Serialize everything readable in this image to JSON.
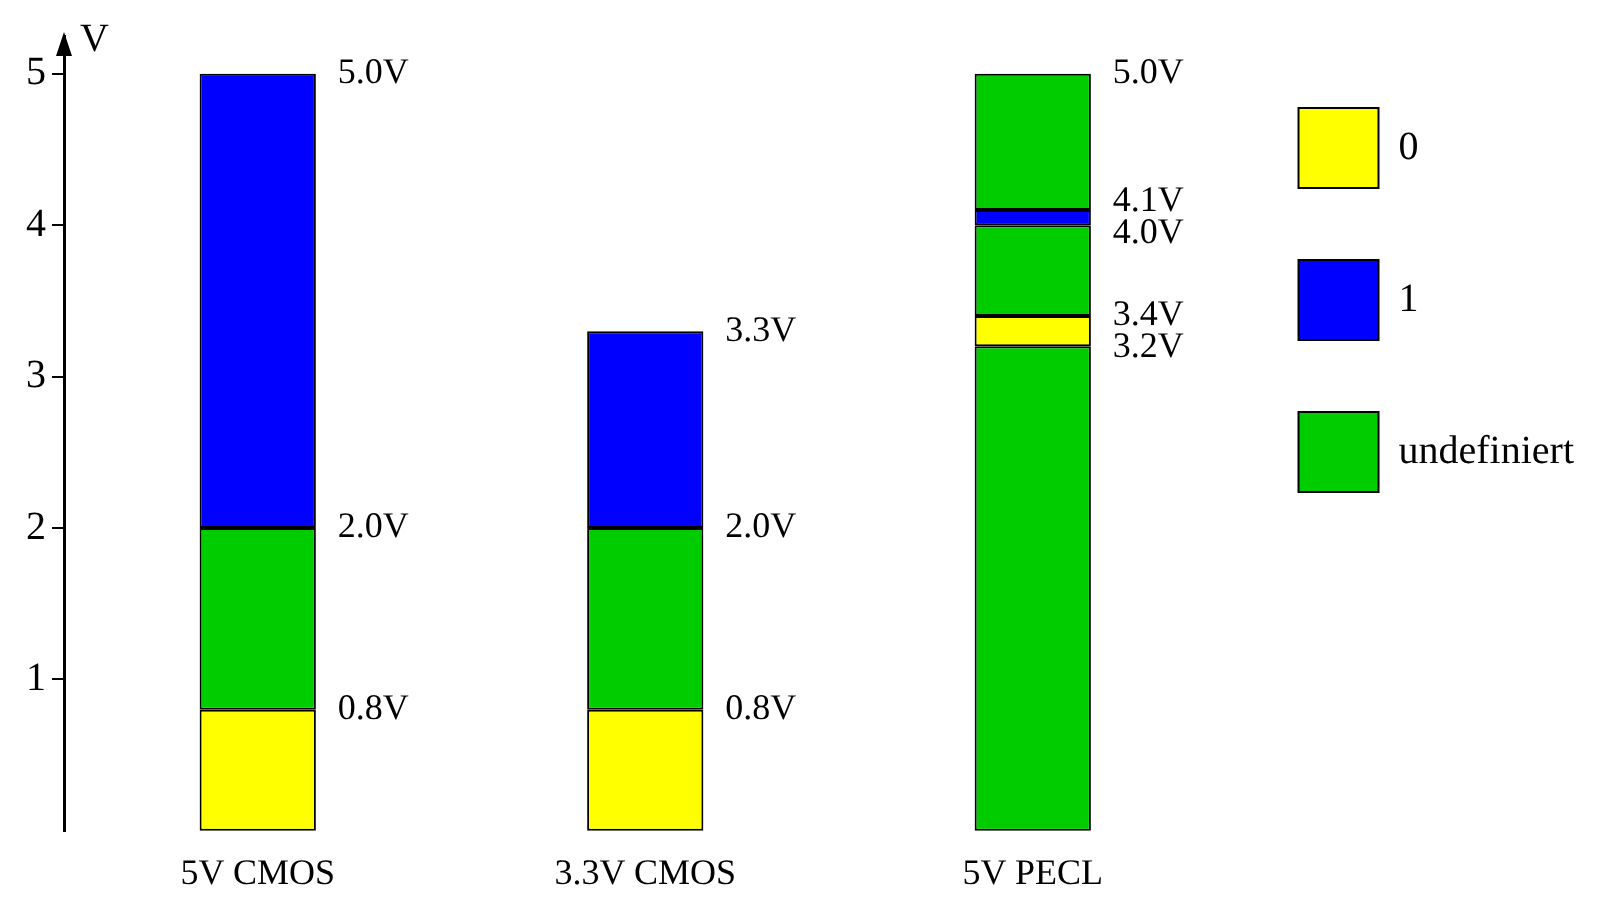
{
  "chart_data": {
    "type": "bar",
    "ylabel": "V",
    "categories": [
      "5V CMOS",
      "3.3V CMOS",
      "5V PECL"
    ],
    "series": [
      {
        "name": "0",
        "color": "#ffff00",
        "values": [
          0.8,
          0.8,
          0.2
        ],
        "base": [
          0,
          0,
          3.2
        ]
      },
      {
        "name": "1",
        "color": "#0000ff",
        "values": [
          3.0,
          1.3,
          0.1
        ],
        "base": [
          2.0,
          2.0,
          4.0
        ]
      },
      {
        "name": "undefiniert",
        "color": "#00cc00",
        "values": [
          1.2,
          1.2,
          3.2
        ],
        "base": [
          0.8,
          0.8,
          0
        ]
      },
      {
        "color": "#00cc00",
        "values": [
          null,
          null,
          0.6
        ],
        "base": [
          null,
          null,
          3.4
        ]
      },
      {
        "color": "#00cc00",
        "values": [
          null,
          null,
          0.9
        ],
        "base": [
          null,
          null,
          4.1
        ]
      }
    ],
    "ylim": [
      0,
      5.25
    ],
    "yticks": [
      1,
      2,
      3,
      4,
      5
    ],
    "grid": false,
    "legend": "right",
    "annotations": [
      {
        "text": "5.0V",
        "x": "5V CMOS",
        "y": 5.0
      },
      {
        "text": "2.0V",
        "x": "5V CMOS",
        "y": 2.0
      },
      {
        "text": "0.8V",
        "x": "5V CMOS",
        "y": 0.8
      },
      {
        "text": "3.3V",
        "x": "3.3V CMOS",
        "y": 3.3
      },
      {
        "text": "2.0V",
        "x": "3.3V CMOS",
        "y": 2.0
      },
      {
        "text": "0.8V",
        "x": "3.3V CMOS",
        "y": 0.8
      },
      {
        "text": "5.0V",
        "x": "5V PECL",
        "y": 5.0
      },
      {
        "text": "4.1V",
        "x": "5V PECL",
        "y": 4.1
      },
      {
        "text": "4.0V",
        "x": "5V PECL",
        "y": 4.0
      },
      {
        "text": "3.4V",
        "x": "5V PECL",
        "y": 3.4
      },
      {
        "text": "3.2V",
        "x": "5V PECL",
        "y": 3.2
      }
    ]
  }
}
